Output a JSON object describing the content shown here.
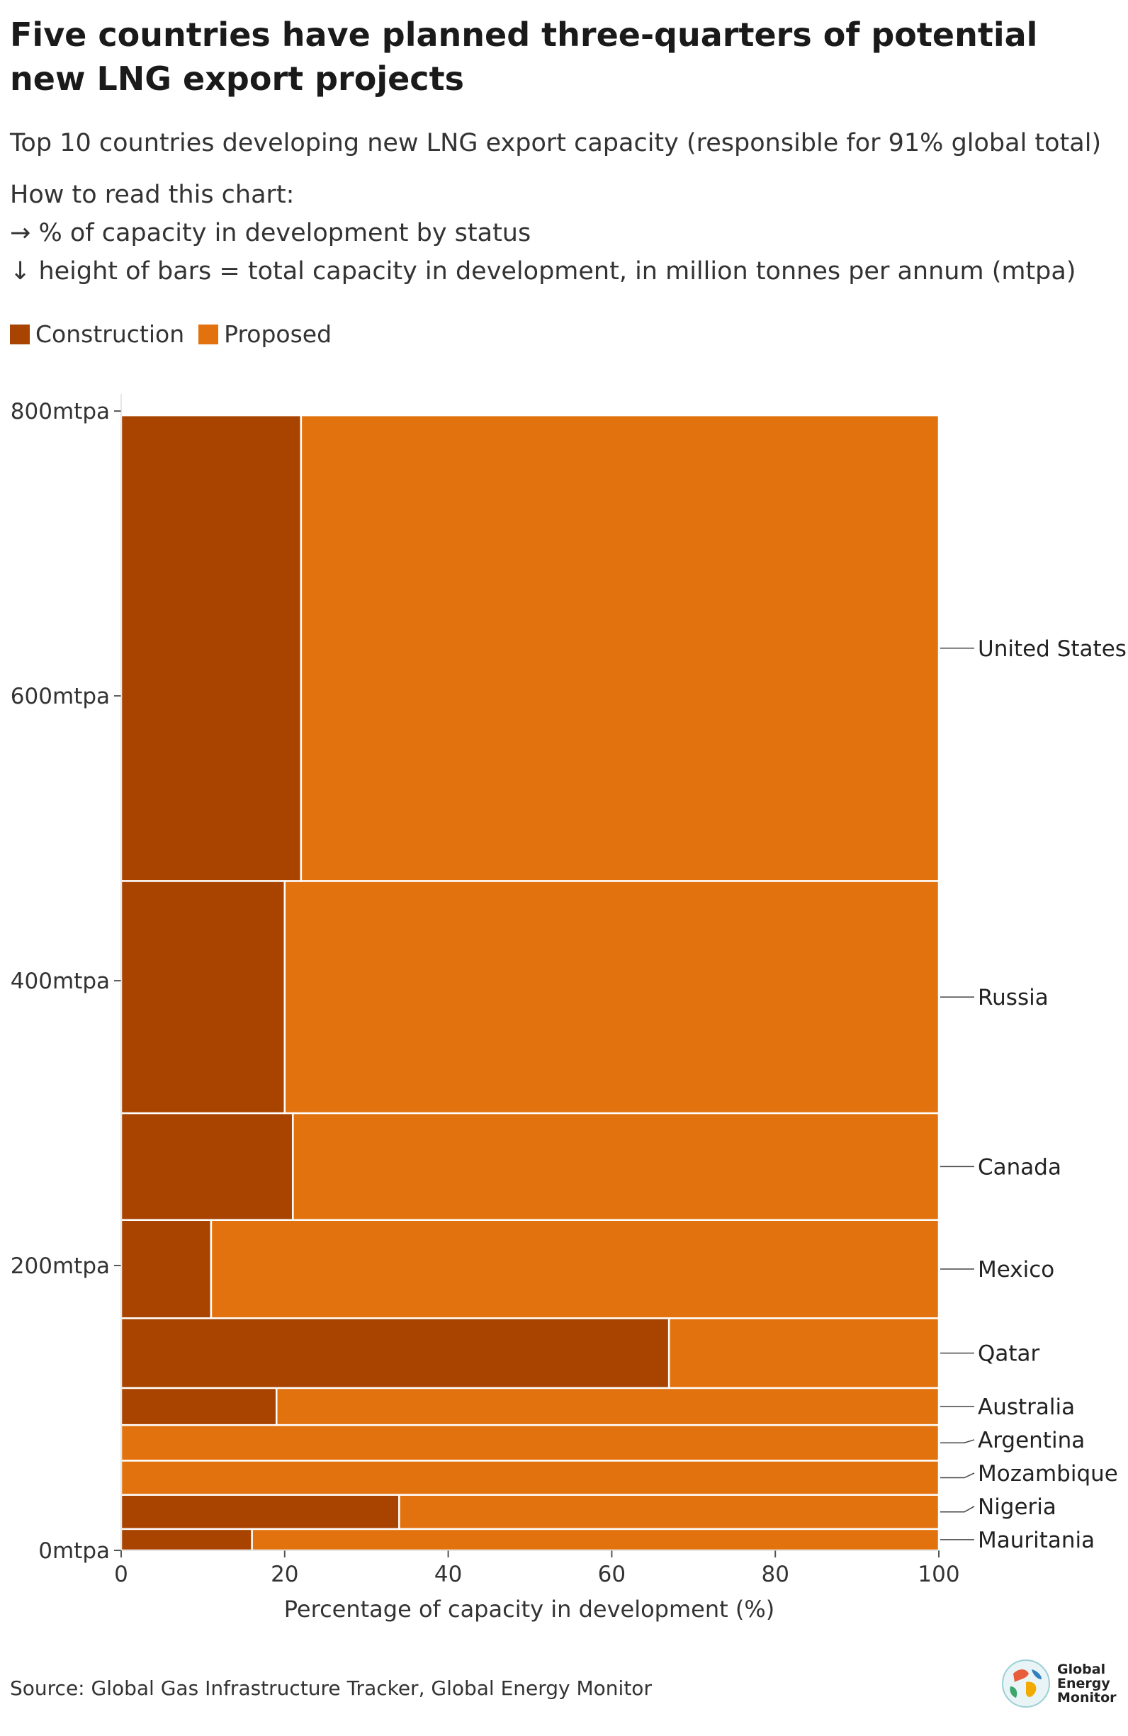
{
  "title": "Five countries have planned three-quarters of potential new LNG export projects",
  "subtitle": "Top 10 countries developing new LNG export capacity (responsible for 91% global total)",
  "how_to_read": {
    "heading": "How to read this chart:",
    "line1": "→ % of capacity in development by status",
    "line2": "↓ height of bars = total capacity in development, in million tonnes per annum (mtpa)"
  },
  "legend": [
    {
      "label": "Construction",
      "color": "#a84300"
    },
    {
      "label": "Proposed",
      "color": "#e2720e"
    }
  ],
  "source": "Source: Global Gas Infrastructure Tracker, Global Energy Monitor",
  "logo": {
    "line1": "Global",
    "line2": "Energy",
    "line3": "Monitor"
  },
  "chart_data": {
    "type": "mekko",
    "xlabel": "Percentage of capacity in development (%)",
    "xlim": [
      0,
      100
    ],
    "xticks": [
      "0",
      "20",
      "40",
      "60",
      "80",
      "100"
    ],
    "ylim": [
      0,
      812
    ],
    "yticks": [
      {
        "value": 0,
        "label": "0mtpa"
      },
      {
        "value": 200,
        "label": "200mtpa"
      },
      {
        "value": 400,
        "label": "400mtpa"
      },
      {
        "value": 600,
        "label": "600mtpa"
      },
      {
        "value": 800,
        "label": "800mtpa"
      }
    ],
    "countries": [
      {
        "name": "United States",
        "total_mtpa": 327,
        "construction_pct": 22
      },
      {
        "name": "Russia",
        "total_mtpa": 163,
        "construction_pct": 20
      },
      {
        "name": "Canada",
        "total_mtpa": 75,
        "construction_pct": 21
      },
      {
        "name": "Mexico",
        "total_mtpa": 69,
        "construction_pct": 11
      },
      {
        "name": "Qatar",
        "total_mtpa": 49,
        "construction_pct": 67
      },
      {
        "name": "Australia",
        "total_mtpa": 26,
        "construction_pct": 19
      },
      {
        "name": "Argentina",
        "total_mtpa": 25,
        "construction_pct": 0
      },
      {
        "name": "Mozambique",
        "total_mtpa": 24,
        "construction_pct": 0
      },
      {
        "name": "Nigeria",
        "total_mtpa": 24,
        "construction_pct": 34
      },
      {
        "name": "Mauritania",
        "total_mtpa": 15,
        "construction_pct": 16
      }
    ]
  }
}
